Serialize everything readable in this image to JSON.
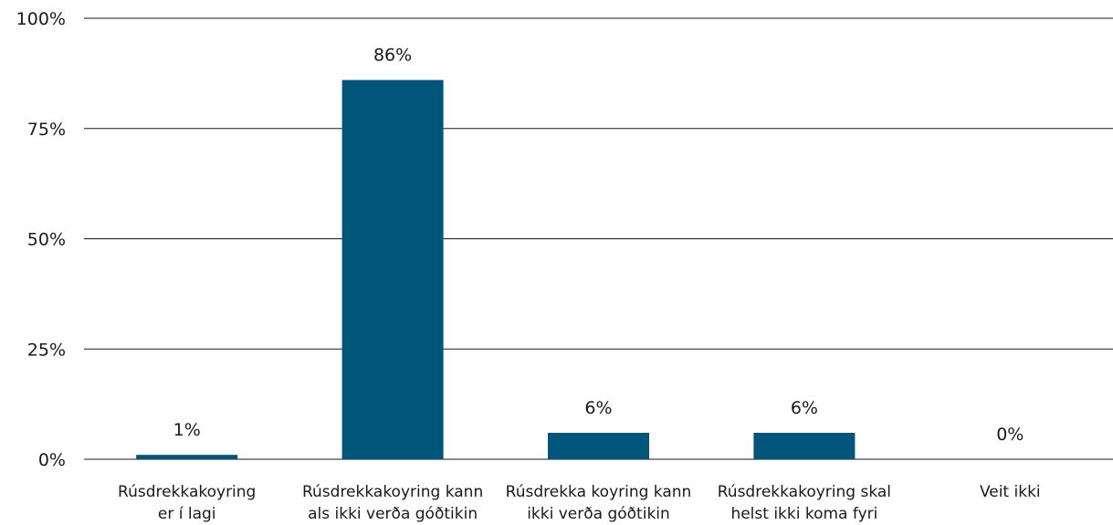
{
  "chart_data": {
    "type": "bar",
    "title": "",
    "xlabel": "",
    "ylabel": "",
    "categories": [
      [
        "Rúsdrekkakoyring",
        "er í lagi"
      ],
      [
        "Rúsdrekkakoyring kann",
        "als ikki verða góðtikin"
      ],
      [
        "Rúsdrekka koyring kann",
        "ikki verða góðtikin"
      ],
      [
        "Rúsdrekkakoyring skal",
        "helst ikki koma fyri"
      ],
      [
        "Veit ikki"
      ]
    ],
    "values": [
      1,
      86,
      6,
      6,
      0
    ],
    "data_labels": [
      "1%",
      "86%",
      "6%",
      "6%",
      "0%"
    ],
    "ylim": [
      0,
      100
    ],
    "yticks": [
      0,
      25,
      50,
      75,
      100
    ],
    "ytick_labels": [
      "0%",
      "25%",
      "50%",
      "75%",
      "100%"
    ],
    "grid": true,
    "legend": "none",
    "bar_color": "#00567a",
    "grid_color": "#1a1a1a"
  }
}
